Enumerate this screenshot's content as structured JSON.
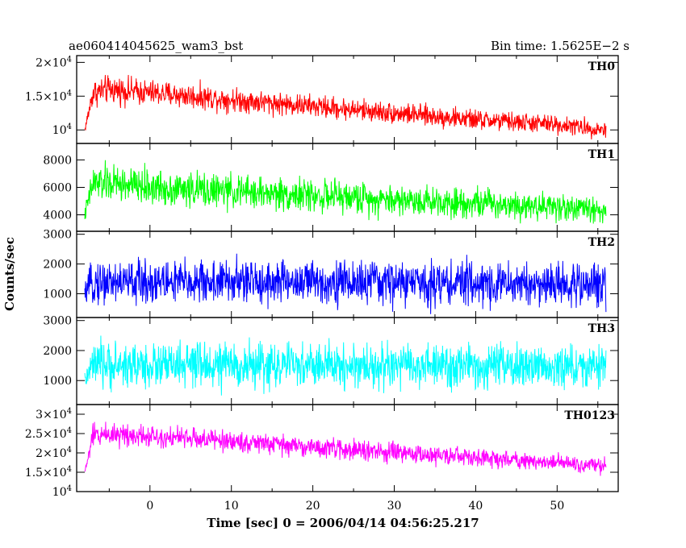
{
  "chart_data": {
    "type": "line",
    "title_left": "ae060414045625_wam3_bst",
    "title_right": "Bin time: 1.5625E−2 s",
    "xlabel": "Time [sec] 0 = 2006/04/14 04:56:25.217",
    "ylabel": "Counts/sec",
    "xlim": [
      -9,
      57.5
    ],
    "x_ticks": [
      0,
      10,
      20,
      30,
      40,
      50
    ],
    "x_tick_labels": [
      "0",
      "10",
      "20",
      "30",
      "40",
      "50"
    ],
    "data_range": [
      -8,
      56
    ],
    "panels": [
      {
        "label": "TH0",
        "color": "#ff0000",
        "ylim": [
          8000,
          21000
        ],
        "y_ticks": [
          10000,
          15000,
          20000
        ],
        "y_tick_labels": [
          {
            "m": "",
            "e": "10",
            "p": "4"
          },
          {
            "m": "1.5×",
            "e": "10",
            "p": "4"
          },
          {
            "m": "2×",
            "e": "10",
            "p": "4"
          }
        ],
        "x": [
          -8,
          -7,
          -5,
          0,
          10,
          20,
          30,
          40,
          50,
          56
        ],
        "mean": [
          10000,
          15500,
          16000,
          15500,
          14500,
          13500,
          12500,
          11500,
          10800,
          10000
        ],
        "amp": [
          800,
          3000,
          3000,
          2800,
          2600,
          2400,
          2300,
          2200,
          2000,
          1800
        ]
      },
      {
        "label": "TH1",
        "color": "#00ff00",
        "ylim": [
          2800,
          9200
        ],
        "y_ticks": [
          4000,
          6000,
          8000
        ],
        "y_tick_labels": [
          {
            "m": "4000",
            "e": "",
            "p": ""
          },
          {
            "m": "6000",
            "e": "",
            "p": ""
          },
          {
            "m": "8000",
            "e": "",
            "p": ""
          }
        ],
        "x": [
          -8,
          -7,
          -5,
          0,
          10,
          20,
          30,
          40,
          50,
          56
        ],
        "mean": [
          4000,
          6300,
          6300,
          6000,
          5700,
          5400,
          5100,
          4900,
          4600,
          4300
        ],
        "amp": [
          800,
          2000,
          2000,
          1900,
          1800,
          1700,
          1700,
          1600,
          1500,
          1400
        ]
      },
      {
        "label": "TH2",
        "color": "#0000ff",
        "ylim": [
          200,
          3100
        ],
        "y_ticks": [
          1000,
          2000,
          3000
        ],
        "y_tick_labels": [
          {
            "m": "1000",
            "e": "",
            "p": ""
          },
          {
            "m": "2000",
            "e": "",
            "p": ""
          },
          {
            "m": "3000",
            "e": "",
            "p": ""
          }
        ],
        "x": [
          -8,
          -7,
          0,
          20,
          40,
          56
        ],
        "mean": [
          1000,
          1400,
          1400,
          1400,
          1350,
          1300
        ],
        "amp": [
          400,
          1100,
          1100,
          1100,
          1100,
          1050
        ]
      },
      {
        "label": "TH3",
        "color": "#00ffff",
        "ylim": [
          200,
          3100
        ],
        "y_ticks": [
          1000,
          2000,
          3000
        ],
        "y_tick_labels": [
          {
            "m": "1000",
            "e": "",
            "p": ""
          },
          {
            "m": "2000",
            "e": "",
            "p": ""
          },
          {
            "m": "3000",
            "e": "",
            "p": ""
          }
        ],
        "x": [
          -8,
          -7,
          0,
          20,
          40,
          56
        ],
        "mean": [
          1000,
          1500,
          1500,
          1500,
          1450,
          1450
        ],
        "amp": [
          400,
          1100,
          1100,
          1100,
          1100,
          1050
        ]
      },
      {
        "label": "TH0123",
        "color": "#ff00ff",
        "ylim": [
          10000,
          32500
        ],
        "y_ticks": [
          10000,
          15000,
          20000,
          25000,
          30000
        ],
        "y_tick_labels": [
          {
            "m": "",
            "e": "10",
            "p": "4"
          },
          {
            "m": "1.5×",
            "e": "10",
            "p": "4"
          },
          {
            "m": "2×",
            "e": "10",
            "p": "4"
          },
          {
            "m": "2.5×",
            "e": "10",
            "p": "4"
          },
          {
            "m": "3×",
            "e": "10",
            "p": "4"
          }
        ],
        "x": [
          -8,
          -7,
          -5,
          0,
          10,
          20,
          30,
          40,
          50,
          56
        ],
        "mean": [
          15000,
          24500,
          25000,
          24500,
          23000,
          21500,
          20000,
          18800,
          17500,
          16500
        ],
        "amp": [
          1500,
          4500,
          4500,
          4300,
          4000,
          3800,
          3600,
          3400,
          3200,
          3000
        ]
      }
    ]
  }
}
